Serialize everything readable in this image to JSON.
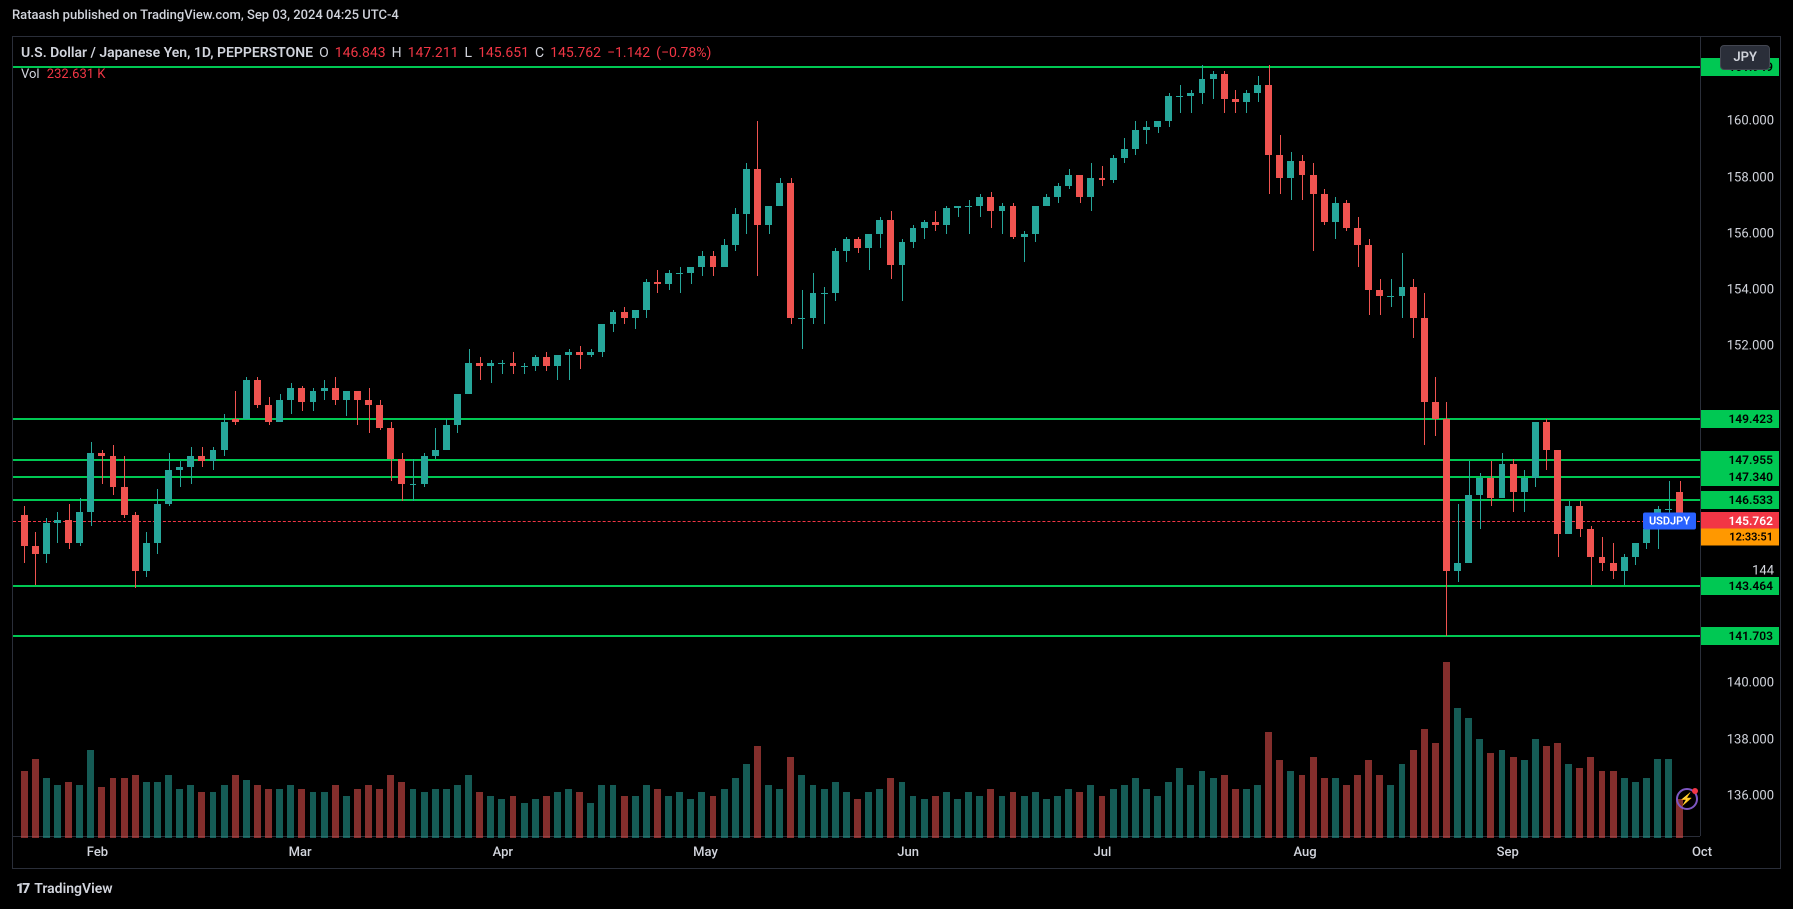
{
  "credit": "Rataash published on TradingView.com, Sep 03, 2024 04:25 UTC-4",
  "info": {
    "symbol": "U.S. Dollar / Japanese Yen, 1D, PEPPERSTONE",
    "O_label": "O",
    "O": "146.843",
    "H_label": "H",
    "H": "147.211",
    "L_label": "L",
    "L": "145.651",
    "C_label": "C",
    "C": "145.762",
    "chg": "−1.142",
    "chg_pct": "(−0.78%)",
    "vol_label": "Vol",
    "vol": "232.631 K",
    "jpy_badge": "JPY"
  },
  "yaxis": {
    "min": 134.5,
    "max": 163.0,
    "ticks": [
      160.0,
      158.0,
      156.0,
      154.0,
      152.0,
      140.0,
      138.0,
      136.0
    ],
    "partial_tick": "144",
    "partial_tick_val": 144.0
  },
  "xaxis": {
    "ticks": [
      "Feb",
      "Mar",
      "Apr",
      "May",
      "Jun",
      "Jul",
      "Aug",
      "Sep",
      "Oct"
    ],
    "tick_positions_pct": [
      5,
      17,
      29,
      41,
      53,
      64.5,
      76.5,
      88.5,
      100
    ]
  },
  "horizontal_lines": [
    161.949,
    149.423,
    147.955,
    147.34,
    146.533,
    143.464,
    141.703
  ],
  "current_price": {
    "symbol": "USDJPY",
    "value": 145.762,
    "countdown": "12:33:51"
  },
  "colors": {
    "up": "#26a69a",
    "down": "#ef5350",
    "line_green": "#00c853",
    "tag_red": "#f23645",
    "tag_orange": "#ff9800",
    "badge_blue": "#2962ff",
    "text": "#d1d4dc",
    "bg": "#000000",
    "border": "#2a2e39"
  },
  "volume": {
    "max_rel": 1.0,
    "area_height_pct": 22
  },
  "candles": [
    {
      "o": 146.0,
      "h": 146.3,
      "l": 144.3,
      "c": 144.9,
      "v": 0.38,
      "d": "dn"
    },
    {
      "o": 144.9,
      "h": 145.4,
      "l": 143.5,
      "c": 144.6,
      "v": 0.45,
      "d": "dn"
    },
    {
      "o": 144.6,
      "h": 145.9,
      "l": 144.3,
      "c": 145.7,
      "v": 0.34,
      "d": "up"
    },
    {
      "o": 145.7,
      "h": 146.1,
      "l": 145.0,
      "c": 145.8,
      "v": 0.3,
      "d": "up"
    },
    {
      "o": 145.8,
      "h": 146.4,
      "l": 144.8,
      "c": 145.0,
      "v": 0.32,
      "d": "dn"
    },
    {
      "o": 145.0,
      "h": 146.6,
      "l": 144.9,
      "c": 146.1,
      "v": 0.3,
      "d": "up"
    },
    {
      "o": 146.1,
      "h": 148.6,
      "l": 145.6,
      "c": 148.2,
      "v": 0.5,
      "d": "up"
    },
    {
      "o": 148.2,
      "h": 148.3,
      "l": 147.1,
      "c": 148.1,
      "v": 0.29,
      "d": "dn"
    },
    {
      "o": 148.1,
      "h": 148.5,
      "l": 146.7,
      "c": 147.0,
      "v": 0.34,
      "d": "dn"
    },
    {
      "o": 147.0,
      "h": 148.1,
      "l": 145.9,
      "c": 146.0,
      "v": 0.34,
      "d": "dn"
    },
    {
      "o": 146.0,
      "h": 146.1,
      "l": 143.4,
      "c": 144.0,
      "v": 0.36,
      "d": "dn"
    },
    {
      "o": 144.0,
      "h": 145.4,
      "l": 143.8,
      "c": 145.0,
      "v": 0.32,
      "d": "up"
    },
    {
      "o": 145.0,
      "h": 146.9,
      "l": 144.6,
      "c": 146.4,
      "v": 0.32,
      "d": "up"
    },
    {
      "o": 146.4,
      "h": 148.2,
      "l": 146.3,
      "c": 147.6,
      "v": 0.36,
      "d": "up"
    },
    {
      "o": 147.6,
      "h": 147.9,
      "l": 147.0,
      "c": 147.7,
      "v": 0.28,
      "d": "up"
    },
    {
      "o": 147.7,
      "h": 148.4,
      "l": 147.1,
      "c": 148.1,
      "v": 0.3,
      "d": "up"
    },
    {
      "o": 148.1,
      "h": 148.4,
      "l": 147.7,
      "c": 147.9,
      "v": 0.26,
      "d": "dn"
    },
    {
      "o": 147.9,
      "h": 148.4,
      "l": 147.6,
      "c": 148.3,
      "v": 0.26,
      "d": "up"
    },
    {
      "o": 148.3,
      "h": 149.6,
      "l": 148.1,
      "c": 149.3,
      "v": 0.3,
      "d": "up"
    },
    {
      "o": 149.3,
      "h": 150.4,
      "l": 149.2,
      "c": 149.4,
      "v": 0.36,
      "d": "dn"
    },
    {
      "o": 149.4,
      "h": 150.9,
      "l": 149.5,
      "c": 150.8,
      "v": 0.33,
      "d": "up"
    },
    {
      "o": 150.8,
      "h": 150.9,
      "l": 149.8,
      "c": 149.9,
      "v": 0.3,
      "d": "dn"
    },
    {
      "o": 149.9,
      "h": 150.2,
      "l": 149.2,
      "c": 149.3,
      "v": 0.28,
      "d": "dn"
    },
    {
      "o": 149.3,
      "h": 150.3,
      "l": 149.3,
      "c": 150.1,
      "v": 0.28,
      "d": "up"
    },
    {
      "o": 150.1,
      "h": 150.7,
      "l": 149.6,
      "c": 150.5,
      "v": 0.3,
      "d": "up"
    },
    {
      "o": 150.5,
      "h": 150.6,
      "l": 149.7,
      "c": 150.0,
      "v": 0.28,
      "d": "dn"
    },
    {
      "o": 150.0,
      "h": 150.5,
      "l": 149.7,
      "c": 150.4,
      "v": 0.26,
      "d": "up"
    },
    {
      "o": 150.4,
      "h": 150.8,
      "l": 150.1,
      "c": 150.5,
      "v": 0.26,
      "d": "up"
    },
    {
      "o": 150.5,
      "h": 150.9,
      "l": 149.9,
      "c": 150.1,
      "v": 0.3,
      "d": "dn"
    },
    {
      "o": 150.1,
      "h": 150.4,
      "l": 149.5,
      "c": 150.4,
      "v": 0.24,
      "d": "up"
    },
    {
      "o": 150.4,
      "h": 150.4,
      "l": 149.2,
      "c": 150.1,
      "v": 0.28,
      "d": "dn"
    },
    {
      "o": 150.1,
      "h": 150.5,
      "l": 148.9,
      "c": 149.9,
      "v": 0.3,
      "d": "dn"
    },
    {
      "o": 149.9,
      "h": 150.1,
      "l": 149.0,
      "c": 149.1,
      "v": 0.28,
      "d": "dn"
    },
    {
      "o": 149.1,
      "h": 149.3,
      "l": 147.2,
      "c": 148.0,
      "v": 0.36,
      "d": "dn"
    },
    {
      "o": 148.0,
      "h": 148.2,
      "l": 146.5,
      "c": 147.1,
      "v": 0.32,
      "d": "dn"
    },
    {
      "o": 147.1,
      "h": 148.0,
      "l": 146.5,
      "c": 147.1,
      "v": 0.28,
      "d": "up"
    },
    {
      "o": 147.1,
      "h": 148.2,
      "l": 147.0,
      "c": 148.1,
      "v": 0.26,
      "d": "up"
    },
    {
      "o": 148.1,
      "h": 149.1,
      "l": 148.0,
      "c": 148.3,
      "v": 0.28,
      "d": "up"
    },
    {
      "o": 148.3,
      "h": 149.4,
      "l": 148.3,
      "c": 149.2,
      "v": 0.28,
      "d": "up"
    },
    {
      "o": 149.2,
      "h": 150.3,
      "l": 148.9,
      "c": 150.3,
      "v": 0.3,
      "d": "up"
    },
    {
      "o": 150.3,
      "h": 151.9,
      "l": 150.3,
      "c": 151.4,
      "v": 0.36,
      "d": "up"
    },
    {
      "o": 151.4,
      "h": 151.6,
      "l": 150.8,
      "c": 151.3,
      "v": 0.26,
      "d": "dn"
    },
    {
      "o": 151.3,
      "h": 151.5,
      "l": 150.7,
      "c": 151.4,
      "v": 0.24,
      "d": "up"
    },
    {
      "o": 151.4,
      "h": 151.5,
      "l": 151.0,
      "c": 151.4,
      "v": 0.22,
      "d": "up"
    },
    {
      "o": 151.4,
      "h": 151.8,
      "l": 151.0,
      "c": 151.3,
      "v": 0.24,
      "d": "dn"
    },
    {
      "o": 151.3,
      "h": 151.4,
      "l": 151.0,
      "c": 151.3,
      "v": 0.2,
      "d": "up"
    },
    {
      "o": 151.3,
      "h": 151.7,
      "l": 151.1,
      "c": 151.6,
      "v": 0.22,
      "d": "up"
    },
    {
      "o": 151.6,
      "h": 151.8,
      "l": 151.1,
      "c": 151.3,
      "v": 0.24,
      "d": "dn"
    },
    {
      "o": 151.3,
      "h": 151.7,
      "l": 150.8,
      "c": 151.7,
      "v": 0.26,
      "d": "up"
    },
    {
      "o": 151.7,
      "h": 151.9,
      "l": 150.8,
      "c": 151.8,
      "v": 0.28,
      "d": "up"
    },
    {
      "o": 151.8,
      "h": 152.0,
      "l": 151.2,
      "c": 151.7,
      "v": 0.26,
      "d": "dn"
    },
    {
      "o": 151.7,
      "h": 151.9,
      "l": 151.6,
      "c": 151.8,
      "v": 0.2,
      "d": "up"
    },
    {
      "o": 151.8,
      "h": 152.8,
      "l": 151.6,
      "c": 152.8,
      "v": 0.3,
      "d": "up"
    },
    {
      "o": 152.8,
      "h": 153.3,
      "l": 152.5,
      "c": 153.2,
      "v": 0.3,
      "d": "up"
    },
    {
      "o": 153.2,
      "h": 153.4,
      "l": 152.8,
      "c": 153.0,
      "v": 0.24,
      "d": "dn"
    },
    {
      "o": 153.0,
      "h": 153.3,
      "l": 152.6,
      "c": 153.3,
      "v": 0.24,
      "d": "up"
    },
    {
      "o": 153.3,
      "h": 154.4,
      "l": 153.0,
      "c": 154.3,
      "v": 0.3,
      "d": "up"
    },
    {
      "o": 154.3,
      "h": 154.7,
      "l": 153.9,
      "c": 154.2,
      "v": 0.28,
      "d": "dn"
    },
    {
      "o": 154.2,
      "h": 154.7,
      "l": 154.0,
      "c": 154.6,
      "v": 0.24,
      "d": "up"
    },
    {
      "o": 154.6,
      "h": 154.8,
      "l": 153.9,
      "c": 154.6,
      "v": 0.26,
      "d": "up"
    },
    {
      "o": 154.6,
      "h": 154.8,
      "l": 154.2,
      "c": 154.8,
      "v": 0.22,
      "d": "up"
    },
    {
      "o": 154.8,
      "h": 155.4,
      "l": 154.5,
      "c": 155.2,
      "v": 0.26,
      "d": "up"
    },
    {
      "o": 155.2,
      "h": 155.4,
      "l": 154.5,
      "c": 154.8,
      "v": 0.24,
      "d": "dn"
    },
    {
      "o": 154.8,
      "h": 155.8,
      "l": 154.8,
      "c": 155.6,
      "v": 0.28,
      "d": "up"
    },
    {
      "o": 155.6,
      "h": 156.9,
      "l": 155.4,
      "c": 156.7,
      "v": 0.34,
      "d": "up"
    },
    {
      "o": 156.7,
      "h": 158.5,
      "l": 156.0,
      "c": 158.3,
      "v": 0.42,
      "d": "up"
    },
    {
      "o": 158.3,
      "h": 160.0,
      "l": 154.5,
      "c": 156.3,
      "v": 0.52,
      "d": "dn"
    },
    {
      "o": 156.3,
      "h": 157.0,
      "l": 156.0,
      "c": 157.0,
      "v": 0.3,
      "d": "up"
    },
    {
      "o": 157.0,
      "h": 158.0,
      "l": 157.0,
      "c": 157.8,
      "v": 0.28,
      "d": "up"
    },
    {
      "o": 157.8,
      "h": 158.0,
      "l": 152.8,
      "c": 153.0,
      "v": 0.46,
      "d": "dn"
    },
    {
      "o": 153.0,
      "h": 154.0,
      "l": 151.9,
      "c": 153.0,
      "v": 0.36,
      "d": "up"
    },
    {
      "o": 153.0,
      "h": 154.6,
      "l": 152.8,
      "c": 153.9,
      "v": 0.3,
      "d": "up"
    },
    {
      "o": 153.9,
      "h": 154.1,
      "l": 152.8,
      "c": 153.9,
      "v": 0.28,
      "d": "up"
    },
    {
      "o": 153.9,
      "h": 155.5,
      "l": 153.6,
      "c": 155.4,
      "v": 0.32,
      "d": "up"
    },
    {
      "o": 155.4,
      "h": 155.9,
      "l": 155.0,
      "c": 155.8,
      "v": 0.26,
      "d": "up"
    },
    {
      "o": 155.8,
      "h": 155.9,
      "l": 155.3,
      "c": 155.5,
      "v": 0.22,
      "d": "dn"
    },
    {
      "o": 155.5,
      "h": 156.0,
      "l": 154.7,
      "c": 156.0,
      "v": 0.26,
      "d": "up"
    },
    {
      "o": 156.0,
      "h": 156.6,
      "l": 155.5,
      "c": 156.5,
      "v": 0.28,
      "d": "up"
    },
    {
      "o": 156.5,
      "h": 156.8,
      "l": 154.4,
      "c": 154.9,
      "v": 0.34,
      "d": "dn"
    },
    {
      "o": 154.9,
      "h": 155.8,
      "l": 153.6,
      "c": 155.7,
      "v": 0.32,
      "d": "up"
    },
    {
      "o": 155.7,
      "h": 156.3,
      "l": 155.5,
      "c": 156.2,
      "v": 0.24,
      "d": "up"
    },
    {
      "o": 156.2,
      "h": 156.5,
      "l": 155.8,
      "c": 156.4,
      "v": 0.22,
      "d": "up"
    },
    {
      "o": 156.4,
      "h": 156.8,
      "l": 156.1,
      "c": 156.3,
      "v": 0.24,
      "d": "dn"
    },
    {
      "o": 156.3,
      "h": 157.0,
      "l": 156.0,
      "c": 156.9,
      "v": 0.26,
      "d": "up"
    },
    {
      "o": 156.9,
      "h": 157.0,
      "l": 156.6,
      "c": 157.0,
      "v": 0.22,
      "d": "up"
    },
    {
      "o": 157.0,
      "h": 157.2,
      "l": 156.0,
      "c": 157.0,
      "v": 0.26,
      "d": "up"
    },
    {
      "o": 157.0,
      "h": 157.4,
      "l": 156.6,
      "c": 157.3,
      "v": 0.24,
      "d": "up"
    },
    {
      "o": 157.3,
      "h": 157.5,
      "l": 156.2,
      "c": 156.8,
      "v": 0.28,
      "d": "dn"
    },
    {
      "o": 156.8,
      "h": 157.1,
      "l": 156.0,
      "c": 157.0,
      "v": 0.24,
      "d": "up"
    },
    {
      "o": 157.0,
      "h": 157.1,
      "l": 155.8,
      "c": 155.9,
      "v": 0.26,
      "d": "dn"
    },
    {
      "o": 155.9,
      "h": 156.1,
      "l": 155.0,
      "c": 156.0,
      "v": 0.24,
      "d": "up"
    },
    {
      "o": 156.0,
      "h": 157.0,
      "l": 155.7,
      "c": 157.0,
      "v": 0.26,
      "d": "up"
    },
    {
      "o": 157.0,
      "h": 157.4,
      "l": 157.0,
      "c": 157.3,
      "v": 0.22,
      "d": "up"
    },
    {
      "o": 157.3,
      "h": 157.8,
      "l": 157.1,
      "c": 157.7,
      "v": 0.24,
      "d": "up"
    },
    {
      "o": 157.7,
      "h": 158.3,
      "l": 157.6,
      "c": 158.1,
      "v": 0.28,
      "d": "up"
    },
    {
      "o": 158.1,
      "h": 158.1,
      "l": 157.1,
      "c": 157.3,
      "v": 0.26,
      "d": "dn"
    },
    {
      "o": 157.3,
      "h": 158.5,
      "l": 156.8,
      "c": 158.0,
      "v": 0.3,
      "d": "up"
    },
    {
      "o": 158.0,
      "h": 158.4,
      "l": 157.7,
      "c": 157.9,
      "v": 0.24,
      "d": "dn"
    },
    {
      "o": 157.9,
      "h": 158.8,
      "l": 157.8,
      "c": 158.7,
      "v": 0.28,
      "d": "up"
    },
    {
      "o": 158.7,
      "h": 159.4,
      "l": 158.5,
      "c": 159.0,
      "v": 0.3,
      "d": "up"
    },
    {
      "o": 159.0,
      "h": 160.0,
      "l": 158.8,
      "c": 159.7,
      "v": 0.34,
      "d": "up"
    },
    {
      "o": 159.7,
      "h": 160.0,
      "l": 159.2,
      "c": 159.8,
      "v": 0.28,
      "d": "up"
    },
    {
      "o": 159.8,
      "h": 160.0,
      "l": 159.6,
      "c": 160.0,
      "v": 0.24,
      "d": "up"
    },
    {
      "o": 160.0,
      "h": 161.0,
      "l": 159.8,
      "c": 160.9,
      "v": 0.32,
      "d": "up"
    },
    {
      "o": 160.9,
      "h": 161.3,
      "l": 160.3,
      "c": 160.9,
      "v": 0.4,
      "d": "up"
    },
    {
      "o": 160.9,
      "h": 161.1,
      "l": 160.3,
      "c": 161.0,
      "v": 0.3,
      "d": "up"
    },
    {
      "o": 161.0,
      "h": 162.0,
      "l": 160.6,
      "c": 161.5,
      "v": 0.38,
      "d": "up"
    },
    {
      "o": 161.5,
      "h": 161.8,
      "l": 160.8,
      "c": 161.7,
      "v": 0.34,
      "d": "up"
    },
    {
      "o": 161.7,
      "h": 161.8,
      "l": 160.3,
      "c": 160.8,
      "v": 0.36,
      "d": "dn"
    },
    {
      "o": 160.8,
      "h": 161.1,
      "l": 160.3,
      "c": 160.7,
      "v": 0.28,
      "d": "dn"
    },
    {
      "o": 160.7,
      "h": 161.1,
      "l": 160.3,
      "c": 161.0,
      "v": 0.28,
      "d": "up"
    },
    {
      "o": 161.0,
      "h": 161.6,
      "l": 160.7,
      "c": 161.3,
      "v": 0.3,
      "d": "up"
    },
    {
      "o": 161.3,
      "h": 162.0,
      "l": 157.4,
      "c": 158.8,
      "v": 0.6,
      "d": "dn"
    },
    {
      "o": 158.8,
      "h": 159.5,
      "l": 157.4,
      "c": 158.0,
      "v": 0.44,
      "d": "dn"
    },
    {
      "o": 158.0,
      "h": 158.9,
      "l": 157.2,
      "c": 158.6,
      "v": 0.38,
      "d": "up"
    },
    {
      "o": 158.6,
      "h": 158.8,
      "l": 157.2,
      "c": 158.1,
      "v": 0.36,
      "d": "dn"
    },
    {
      "o": 158.1,
      "h": 158.5,
      "l": 155.4,
      "c": 157.4,
      "v": 0.46,
      "d": "dn"
    },
    {
      "o": 157.4,
      "h": 157.6,
      "l": 156.3,
      "c": 156.4,
      "v": 0.34,
      "d": "dn"
    },
    {
      "o": 156.4,
      "h": 157.3,
      "l": 155.8,
      "c": 157.1,
      "v": 0.34,
      "d": "up"
    },
    {
      "o": 157.1,
      "h": 157.2,
      "l": 156.1,
      "c": 156.2,
      "v": 0.3,
      "d": "dn"
    },
    {
      "o": 156.2,
      "h": 156.6,
      "l": 154.8,
      "c": 155.6,
      "v": 0.36,
      "d": "dn"
    },
    {
      "o": 155.6,
      "h": 155.8,
      "l": 153.1,
      "c": 154.0,
      "v": 0.44,
      "d": "dn"
    },
    {
      "o": 154.0,
      "h": 154.4,
      "l": 153.1,
      "c": 153.8,
      "v": 0.36,
      "d": "dn"
    },
    {
      "o": 153.8,
      "h": 154.4,
      "l": 153.4,
      "c": 153.8,
      "v": 0.3,
      "d": "up"
    },
    {
      "o": 153.8,
      "h": 155.3,
      "l": 153.0,
      "c": 154.1,
      "v": 0.42,
      "d": "up"
    },
    {
      "o": 154.1,
      "h": 154.4,
      "l": 152.3,
      "c": 153.0,
      "v": 0.5,
      "d": "dn"
    },
    {
      "o": 153.0,
      "h": 153.9,
      "l": 148.5,
      "c": 150.0,
      "v": 0.62,
      "d": "dn"
    },
    {
      "o": 150.0,
      "h": 150.9,
      "l": 148.8,
      "c": 149.4,
      "v": 0.54,
      "d": "dn"
    },
    {
      "o": 149.4,
      "h": 150.0,
      "l": 141.7,
      "c": 144.0,
      "v": 1.0,
      "d": "dn"
    },
    {
      "o": 144.0,
      "h": 146.4,
      "l": 143.6,
      "c": 144.3,
      "v": 0.74,
      "d": "up"
    },
    {
      "o": 144.3,
      "h": 147.9,
      "l": 144.3,
      "c": 146.7,
      "v": 0.68,
      "d": "up"
    },
    {
      "o": 146.7,
      "h": 147.5,
      "l": 145.5,
      "c": 147.3,
      "v": 0.56,
      "d": "up"
    },
    {
      "o": 147.3,
      "h": 147.9,
      "l": 146.3,
      "c": 146.6,
      "v": 0.48,
      "d": "dn"
    },
    {
      "o": 146.6,
      "h": 148.2,
      "l": 146.6,
      "c": 147.8,
      "v": 0.5,
      "d": "up"
    },
    {
      "o": 147.8,
      "h": 148.0,
      "l": 146.1,
      "c": 146.8,
      "v": 0.46,
      "d": "dn"
    },
    {
      "o": 146.8,
      "h": 147.6,
      "l": 146.1,
      "c": 147.3,
      "v": 0.44,
      "d": "up"
    },
    {
      "o": 147.3,
      "h": 149.3,
      "l": 147.0,
      "c": 149.3,
      "v": 0.56,
      "d": "up"
    },
    {
      "o": 149.3,
      "h": 149.4,
      "l": 147.6,
      "c": 148.3,
      "v": 0.52,
      "d": "dn"
    },
    {
      "o": 148.3,
      "h": 148.3,
      "l": 144.5,
      "c": 145.3,
      "v": 0.54,
      "d": "dn"
    },
    {
      "o": 145.3,
      "h": 146.5,
      "l": 145.3,
      "c": 146.3,
      "v": 0.42,
      "d": "up"
    },
    {
      "o": 146.3,
      "h": 146.5,
      "l": 145.2,
      "c": 145.5,
      "v": 0.4,
      "d": "dn"
    },
    {
      "o": 145.5,
      "h": 145.6,
      "l": 143.5,
      "c": 144.5,
      "v": 0.46,
      "d": "dn"
    },
    {
      "o": 144.5,
      "h": 145.2,
      "l": 144.0,
      "c": 144.3,
      "v": 0.38,
      "d": "dn"
    },
    {
      "o": 144.3,
      "h": 145.0,
      "l": 143.7,
      "c": 144.0,
      "v": 0.38,
      "d": "dn"
    },
    {
      "o": 144.0,
      "h": 144.6,
      "l": 143.5,
      "c": 144.5,
      "v": 0.34,
      "d": "up"
    },
    {
      "o": 144.5,
      "h": 145.0,
      "l": 144.2,
      "c": 145.0,
      "v": 0.32,
      "d": "up"
    },
    {
      "o": 145.0,
      "h": 145.6,
      "l": 144.8,
      "c": 145.5,
      "v": 0.34,
      "d": "up"
    },
    {
      "o": 145.5,
      "h": 146.3,
      "l": 144.8,
      "c": 146.2,
      "v": 0.45,
      "d": "up"
    },
    {
      "o": 146.2,
      "h": 147.2,
      "l": 145.6,
      "c": 146.2,
      "v": 0.45,
      "d": "up"
    },
    {
      "o": 146.8,
      "h": 147.2,
      "l": 145.7,
      "c": 145.8,
      "v": 0.22,
      "d": "dn"
    }
  ],
  "footer": "TradingView"
}
